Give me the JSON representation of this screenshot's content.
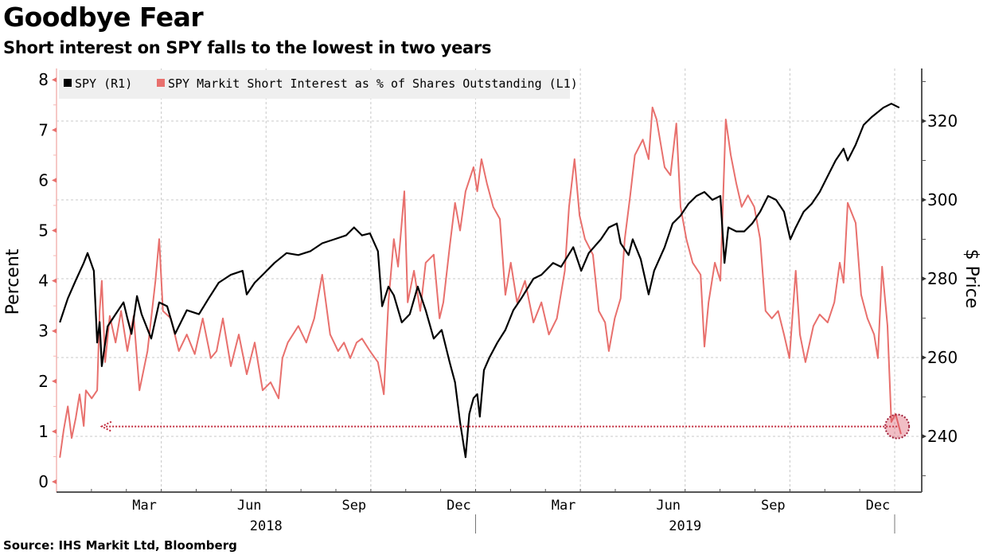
{
  "header": {
    "title": "Goodbye Fear",
    "subtitle": "Short interest on SPY falls to the lowest in two years"
  },
  "footer": {
    "source": "Source: IHS Markit Ltd, Bloomberg"
  },
  "colors": {
    "spy": "#000000",
    "short_interest": "#e8706d",
    "annotation": "#c0283a",
    "grid": "#c8c8c8",
    "legend_bg": "#efefef"
  },
  "chart_data": {
    "type": "line",
    "title": "Goodbye Fear",
    "subtitle": "Short interest on SPY falls to the lowest in two years",
    "legend": {
      "placement": "top-left",
      "entries": [
        "SPY (R1)",
        "SPY Markit Short Interest as % of Shares Outstanding (L1)"
      ]
    },
    "x": {
      "unit": "decimal year",
      "range": [
        2018.0,
        2020.06
      ],
      "month_labels": [
        {
          "label": "Mar",
          "t": 2018.21
        },
        {
          "label": "Jun",
          "t": 2018.46
        },
        {
          "label": "Sep",
          "t": 2018.71
        },
        {
          "label": "Dec",
          "t": 2018.96
        },
        {
          "label": "Mar",
          "t": 2019.21
        },
        {
          "label": "Jun",
          "t": 2019.46
        },
        {
          "label": "Sep",
          "t": 2019.71
        },
        {
          "label": "Dec",
          "t": 2019.96
        }
      ],
      "year_labels": [
        {
          "label": "2018",
          "t": 2018.5
        },
        {
          "label": "2019",
          "t": 2019.5
        }
      ],
      "gridlines_t": [
        2018.25,
        2018.5,
        2018.75,
        2019.0,
        2019.25,
        2019.5,
        2019.75,
        2020.0
      ],
      "year_dividers_t": [
        2019.0,
        2020.0
      ]
    },
    "left_axis": {
      "title": "Percent",
      "range": [
        -0.2,
        8.2
      ],
      "ticks": [
        0,
        1,
        2,
        3,
        4,
        5,
        6,
        7,
        8
      ]
    },
    "right_axis": {
      "title": "$ Price",
      "range": [
        225.5,
        333
      ],
      "ticks": [
        240,
        260,
        280,
        300,
        320
      ],
      "gridlines": [
        240,
        260,
        280,
        300,
        320
      ]
    },
    "series": [
      {
        "name": "SPY (R1)",
        "axis": "right",
        "points": [
          [
            2018.008,
            268.9
          ],
          [
            2018.027,
            275.0
          ],
          [
            2018.046,
            279.6
          ],
          [
            2018.065,
            284.0
          ],
          [
            2018.074,
            286.5
          ],
          [
            2018.089,
            282.0
          ],
          [
            2018.097,
            263.8
          ],
          [
            2018.103,
            269.0
          ],
          [
            2018.108,
            257.8
          ],
          [
            2018.122,
            267.9
          ],
          [
            2018.141,
            271.0
          ],
          [
            2018.16,
            274.0
          ],
          [
            2018.169,
            270.0
          ],
          [
            2018.179,
            266.0
          ],
          [
            2018.192,
            275.6
          ],
          [
            2018.203,
            271.0
          ],
          [
            2018.226,
            264.8
          ],
          [
            2018.245,
            274.0
          ],
          [
            2018.264,
            273.0
          ],
          [
            2018.283,
            266.0
          ],
          [
            2018.311,
            272.0
          ],
          [
            2018.34,
            271.0
          ],
          [
            2018.363,
            275.0
          ],
          [
            2018.387,
            279.0
          ],
          [
            2018.416,
            281.0
          ],
          [
            2018.444,
            282.0
          ],
          [
            2018.454,
            276.0
          ],
          [
            2018.473,
            279.0
          ],
          [
            2018.492,
            281.0
          ],
          [
            2018.52,
            284.0
          ],
          [
            2018.549,
            286.5
          ],
          [
            2018.577,
            286.0
          ],
          [
            2018.606,
            287.0
          ],
          [
            2018.634,
            289.0
          ],
          [
            2018.663,
            290.0
          ],
          [
            2018.691,
            291.0
          ],
          [
            2018.71,
            293.0
          ],
          [
            2018.729,
            291.0
          ],
          [
            2018.748,
            291.5
          ],
          [
            2018.767,
            287.0
          ],
          [
            2018.777,
            273.0
          ],
          [
            2018.792,
            278.0
          ],
          [
            2018.805,
            275.8
          ],
          [
            2018.824,
            268.9
          ],
          [
            2018.843,
            271.0
          ],
          [
            2018.862,
            278.0
          ],
          [
            2018.881,
            272.0
          ],
          [
            2018.9,
            264.8
          ],
          [
            2018.919,
            267.0
          ],
          [
            2018.938,
            258.8
          ],
          [
            2018.951,
            253.7
          ],
          [
            2018.963,
            243.6
          ],
          [
            2018.976,
            234.7
          ],
          [
            2018.985,
            245.7
          ],
          [
            2018.995,
            249.7
          ],
          [
            2019.004,
            250.7
          ],
          [
            2019.01,
            245.0
          ],
          [
            2019.02,
            256.8
          ],
          [
            2019.033,
            260.0
          ],
          [
            2019.052,
            263.8
          ],
          [
            2019.071,
            267.0
          ],
          [
            2019.09,
            272.0
          ],
          [
            2019.109,
            275.0
          ],
          [
            2019.138,
            280.0
          ],
          [
            2019.157,
            281.0
          ],
          [
            2019.185,
            284.0
          ],
          [
            2019.204,
            283.0
          ],
          [
            2019.233,
            288.0
          ],
          [
            2019.252,
            282.0
          ],
          [
            2019.27,
            286.5
          ],
          [
            2019.299,
            290.0
          ],
          [
            2019.318,
            293.0
          ],
          [
            2019.337,
            294.0
          ],
          [
            2019.346,
            289.0
          ],
          [
            2019.365,
            286.0
          ],
          [
            2019.375,
            290.0
          ],
          [
            2019.394,
            285.0
          ],
          [
            2019.413,
            276.0
          ],
          [
            2019.426,
            282.0
          ],
          [
            2019.451,
            288.0
          ],
          [
            2019.47,
            294.0
          ],
          [
            2019.489,
            296.0
          ],
          [
            2019.508,
            299.0
          ],
          [
            2019.527,
            301.0
          ],
          [
            2019.546,
            302.0
          ],
          [
            2019.565,
            300.0
          ],
          [
            2019.584,
            301.0
          ],
          [
            2019.594,
            284.0
          ],
          [
            2019.603,
            293.0
          ],
          [
            2019.622,
            292.0
          ],
          [
            2019.641,
            292.0
          ],
          [
            2019.66,
            294.0
          ],
          [
            2019.679,
            297.0
          ],
          [
            2019.698,
            301.0
          ],
          [
            2019.717,
            300.0
          ],
          [
            2019.736,
            297.0
          ],
          [
            2019.751,
            290.0
          ],
          [
            2019.764,
            293.0
          ],
          [
            2019.783,
            297.0
          ],
          [
            2019.802,
            299.0
          ],
          [
            2019.821,
            302.0
          ],
          [
            2019.84,
            306.0
          ],
          [
            2019.859,
            310.0
          ],
          [
            2019.878,
            313.0
          ],
          [
            2019.888,
            310.0
          ],
          [
            2019.907,
            314.0
          ],
          [
            2019.926,
            319.0
          ],
          [
            2019.945,
            321.0
          ],
          [
            2019.973,
            323.4
          ],
          [
            2019.992,
            324.4
          ],
          [
            2020.011,
            323.4
          ]
        ]
      },
      {
        "name": "SPY Markit Short Interest as % of Shares Outstanding (L1)",
        "axis": "left",
        "points": [
          [
            2018.008,
            0.48
          ],
          [
            2018.017,
            1.03
          ],
          [
            2018.027,
            1.5
          ],
          [
            2018.036,
            0.87
          ],
          [
            2018.046,
            1.27
          ],
          [
            2018.055,
            1.74
          ],
          [
            2018.065,
            1.11
          ],
          [
            2018.07,
            1.82
          ],
          [
            2018.084,
            1.66
          ],
          [
            2018.097,
            1.82
          ],
          [
            2018.103,
            3.4
          ],
          [
            2018.108,
            4.0
          ],
          [
            2018.116,
            2.38
          ],
          [
            2018.127,
            3.3
          ],
          [
            2018.141,
            2.77
          ],
          [
            2018.154,
            3.4
          ],
          [
            2018.169,
            2.6
          ],
          [
            2018.184,
            3.3
          ],
          [
            2018.198,
            1.82
          ],
          [
            2018.217,
            2.6
          ],
          [
            2018.236,
            4.0
          ],
          [
            2018.245,
            4.83
          ],
          [
            2018.254,
            3.4
          ],
          [
            2018.273,
            3.25
          ],
          [
            2018.292,
            2.6
          ],
          [
            2018.311,
            2.93
          ],
          [
            2018.33,
            2.54
          ],
          [
            2018.349,
            3.25
          ],
          [
            2018.368,
            2.46
          ],
          [
            2018.382,
            2.6
          ],
          [
            2018.397,
            3.25
          ],
          [
            2018.416,
            2.3
          ],
          [
            2018.435,
            2.93
          ],
          [
            2018.454,
            2.14
          ],
          [
            2018.473,
            2.77
          ],
          [
            2018.492,
            1.82
          ],
          [
            2018.511,
            1.98
          ],
          [
            2018.53,
            1.66
          ],
          [
            2018.539,
            2.46
          ],
          [
            2018.552,
            2.77
          ],
          [
            2018.577,
            3.1
          ],
          [
            2018.596,
            2.77
          ],
          [
            2018.615,
            3.25
          ],
          [
            2018.634,
            4.12
          ],
          [
            2018.653,
            2.93
          ],
          [
            2018.672,
            2.6
          ],
          [
            2018.686,
            2.77
          ],
          [
            2018.701,
            2.46
          ],
          [
            2018.716,
            2.77
          ],
          [
            2018.729,
            2.85
          ],
          [
            2018.748,
            2.6
          ],
          [
            2018.767,
            2.38
          ],
          [
            2018.781,
            1.74
          ],
          [
            2018.792,
            3.57
          ],
          [
            2018.805,
            4.83
          ],
          [
            2018.815,
            4.28
          ],
          [
            2018.83,
            5.78
          ],
          [
            2018.838,
            3.57
          ],
          [
            2018.853,
            4.2
          ],
          [
            2018.868,
            3.4
          ],
          [
            2018.881,
            4.36
          ],
          [
            2018.9,
            4.52
          ],
          [
            2018.914,
            3.25
          ],
          [
            2018.923,
            3.57
          ],
          [
            2018.938,
            4.67
          ],
          [
            2018.951,
            5.55
          ],
          [
            2018.963,
            5.0
          ],
          [
            2018.976,
            5.78
          ],
          [
            2018.995,
            6.26
          ],
          [
            2019.004,
            5.78
          ],
          [
            2019.014,
            6.42
          ],
          [
            2019.027,
            5.94
          ],
          [
            2019.042,
            5.47
          ],
          [
            2019.058,
            5.23
          ],
          [
            2019.071,
            3.72
          ],
          [
            2019.084,
            4.36
          ],
          [
            2019.099,
            3.57
          ],
          [
            2019.118,
            4.0
          ],
          [
            2019.138,
            3.17
          ],
          [
            2019.157,
            3.57
          ],
          [
            2019.175,
            2.93
          ],
          [
            2019.194,
            3.25
          ],
          [
            2019.213,
            4.2
          ],
          [
            2019.223,
            5.47
          ],
          [
            2019.236,
            6.42
          ],
          [
            2019.248,
            5.3
          ],
          [
            2019.261,
            4.83
          ],
          [
            2019.28,
            4.52
          ],
          [
            2019.294,
            3.4
          ],
          [
            2019.309,
            3.17
          ],
          [
            2019.318,
            2.6
          ],
          [
            2019.332,
            3.25
          ],
          [
            2019.346,
            3.65
          ],
          [
            2019.356,
            4.83
          ],
          [
            2019.369,
            5.7
          ],
          [
            2019.38,
            6.5
          ],
          [
            2019.399,
            6.81
          ],
          [
            2019.413,
            6.42
          ],
          [
            2019.422,
            7.45
          ],
          [
            2019.432,
            7.21
          ],
          [
            2019.451,
            6.26
          ],
          [
            2019.465,
            6.1
          ],
          [
            2019.479,
            7.13
          ],
          [
            2019.489,
            5.47
          ],
          [
            2019.503,
            4.83
          ],
          [
            2019.518,
            4.36
          ],
          [
            2019.537,
            4.12
          ],
          [
            2019.546,
            2.69
          ],
          [
            2019.556,
            3.57
          ],
          [
            2019.571,
            4.36
          ],
          [
            2019.584,
            4.0
          ],
          [
            2019.597,
            7.21
          ],
          [
            2019.609,
            6.5
          ],
          [
            2019.622,
            5.94
          ],
          [
            2019.635,
            5.47
          ],
          [
            2019.65,
            5.7
          ],
          [
            2019.665,
            5.47
          ],
          [
            2019.679,
            4.83
          ],
          [
            2019.692,
            3.4
          ],
          [
            2019.707,
            3.25
          ],
          [
            2019.722,
            3.4
          ],
          [
            2019.736,
            2.93
          ],
          [
            2019.749,
            2.46
          ],
          [
            2019.764,
            4.2
          ],
          [
            2019.774,
            2.93
          ],
          [
            2019.787,
            2.38
          ],
          [
            2019.806,
            3.1
          ],
          [
            2019.821,
            3.33
          ],
          [
            2019.84,
            3.17
          ],
          [
            2019.856,
            3.57
          ],
          [
            2019.869,
            4.36
          ],
          [
            2019.878,
            3.96
          ],
          [
            2019.888,
            5.55
          ],
          [
            2019.907,
            5.15
          ],
          [
            2019.92,
            3.72
          ],
          [
            2019.935,
            3.25
          ],
          [
            2019.951,
            2.93
          ],
          [
            2019.96,
            2.46
          ],
          [
            2019.97,
            4.28
          ],
          [
            2019.983,
            3.1
          ],
          [
            2019.992,
            1.19
          ],
          [
            2020.002,
            1.35
          ],
          [
            2020.015,
            0.95
          ]
        ]
      }
    ],
    "annotations": [
      {
        "type": "dotted-arrow",
        "description": "Dotted horizontal line pointing left from the latest short-interest low back to early 2018 level",
        "from": {
          "t": 2020.006,
          "value": 1.1
        },
        "to": {
          "t": 2018.108,
          "value": 1.1
        }
      },
      {
        "type": "highlight-circle",
        "description": "Circle highlighting latest short interest reading",
        "at": {
          "t": 2020.006,
          "value": 1.1
        }
      }
    ]
  }
}
